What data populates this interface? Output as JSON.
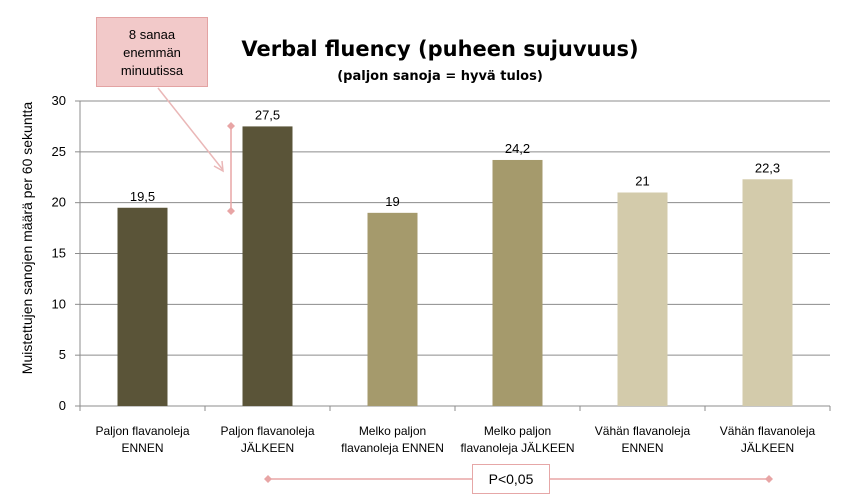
{
  "chart_data": {
    "type": "bar",
    "title": "Verbal fluency (puheen sujuvuus)",
    "subtitle": "(paljon sanoja = hyvä tulos)",
    "ylabel": "Muistettujen sanojen määrä per 60 sekuntta",
    "ylim": [
      0,
      30
    ],
    "yticks": [
      "0",
      "5",
      "10",
      "15",
      "20",
      "25",
      "30"
    ],
    "grid": true,
    "categories": [
      [
        "Paljon flavanoleja",
        "ENNEN"
      ],
      [
        "Paljon flavanoleja",
        "JÄLKEEN"
      ],
      [
        "Melko paljon",
        "flavanoleja ENNEN"
      ],
      [
        "Melko paljon",
        "flavanoleja JÄLKEEN"
      ],
      [
        "Vähän flavanoleja",
        "ENNEN"
      ],
      [
        "Vähän flavanoleja",
        "JÄLKEEN"
      ]
    ],
    "values": [
      19.5,
      27.5,
      19,
      24.2,
      21,
      22.3
    ],
    "data_labels": [
      "19,5",
      "27,5",
      "19",
      "24,2",
      "21",
      "22,3"
    ],
    "bar_colors": [
      "#5a5438",
      "#5a5438",
      "#a59a6c",
      "#a59a6c",
      "#d3cbab",
      "#d3cbab"
    ],
    "annotations": {
      "callout_lines": [
        "8 sanaa",
        "enemmän",
        "minuutissa"
      ],
      "significance": "P<0,05"
    }
  },
  "colors": {
    "accent": "#e8a5a5",
    "callout_fill": "#f2c9c9",
    "grid": "#8c8c8c"
  }
}
